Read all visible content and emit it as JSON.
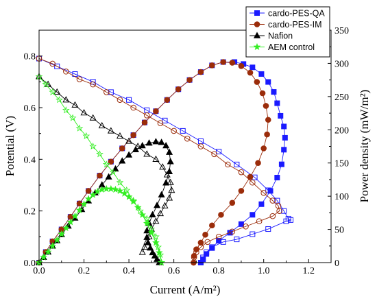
{
  "chart_data": {
    "type": "line",
    "xlabel": "Current (A/m²)",
    "ylabel_left": "Potential (V)",
    "ylabel_right": "Power density (mW/m²)",
    "xlim": [
      0,
      1.3
    ],
    "ylim_left": [
      0,
      0.9
    ],
    "ylim_right": [
      0,
      350
    ],
    "x_ticks": [
      "0.0",
      "0.2",
      "0.4",
      "0.6",
      "0.8",
      "1.0",
      "1.2"
    ],
    "y_ticks_left": [
      "0.0",
      "0.2",
      "0.4",
      "0.6",
      "0.8"
    ],
    "y_ticks_right": [
      "0",
      "50",
      "100",
      "150",
      "200",
      "250",
      "300",
      "350"
    ],
    "legend_position": "top-right",
    "grid": false,
    "series": [
      {
        "name": "cardo-PES-QA",
        "color": "#1a1aff",
        "marker": "square",
        "polarization": [
          [
            0.0,
            0.79
          ],
          [
            0.08,
            0.76
          ],
          [
            0.16,
            0.73
          ],
          [
            0.24,
            0.7
          ],
          [
            0.32,
            0.66
          ],
          [
            0.4,
            0.63
          ],
          [
            0.48,
            0.59
          ],
          [
            0.56,
            0.55
          ],
          [
            0.64,
            0.51
          ],
          [
            0.72,
            0.47
          ],
          [
            0.8,
            0.43
          ],
          [
            0.88,
            0.38
          ],
          [
            0.96,
            0.33
          ],
          [
            1.02,
            0.28
          ],
          [
            1.06,
            0.24
          ],
          [
            1.09,
            0.2
          ],
          [
            1.11,
            0.17
          ],
          [
            1.12,
            0.165
          ],
          [
            1.1,
            0.16
          ],
          [
            1.02,
            0.13
          ],
          [
            0.95,
            0.11
          ],
          [
            0.88,
            0.09
          ],
          [
            0.82,
            0.08
          ],
          [
            0.77,
            0.06
          ],
          [
            0.745,
            0.04
          ],
          [
            0.73,
            0.02
          ],
          [
            0.72,
            0.0
          ]
        ],
        "power": [
          [
            0.0,
            0
          ],
          [
            0.03,
            16
          ],
          [
            0.06,
            32
          ],
          [
            0.1,
            50
          ],
          [
            0.14,
            69
          ],
          [
            0.18,
            89
          ],
          [
            0.22,
            108
          ],
          [
            0.27,
            131
          ],
          [
            0.32,
            152
          ],
          [
            0.37,
            172
          ],
          [
            0.42,
            192
          ],
          [
            0.47,
            211
          ],
          [
            0.52,
            228
          ],
          [
            0.57,
            245
          ],
          [
            0.62,
            261
          ],
          [
            0.67,
            275
          ],
          [
            0.72,
            287
          ],
          [
            0.77,
            297
          ],
          [
            0.82,
            302
          ],
          [
            0.87,
            302
          ],
          [
            0.91,
            299
          ],
          [
            0.95,
            294
          ],
          [
            0.99,
            284
          ],
          [
            1.02,
            272
          ],
          [
            1.045,
            257
          ],
          [
            1.06,
            240
          ],
          [
            1.075,
            221
          ],
          [
            1.09,
            205
          ],
          [
            1.095,
            188
          ],
          [
            1.09,
            170
          ],
          [
            1.08,
            148
          ],
          [
            1.06,
            128
          ],
          [
            1.03,
            108
          ],
          [
            0.99,
            88
          ],
          [
            0.95,
            72
          ],
          [
            0.9,
            58
          ],
          [
            0.85,
            45
          ],
          [
            0.8,
            33
          ],
          [
            0.77,
            22
          ],
          [
            0.745,
            13
          ],
          [
            0.73,
            5
          ],
          [
            0.72,
            0
          ]
        ]
      },
      {
        "name": "cardo-PES-IM",
        "color": "#9b2c0a",
        "marker": "circle",
        "polarization": [
          [
            0.0,
            0.79
          ],
          [
            0.06,
            0.77
          ],
          [
            0.12,
            0.74
          ],
          [
            0.18,
            0.71
          ],
          [
            0.24,
            0.69
          ],
          [
            0.3,
            0.66
          ],
          [
            0.36,
            0.63
          ],
          [
            0.42,
            0.6
          ],
          [
            0.48,
            0.57
          ],
          [
            0.54,
            0.54
          ],
          [
            0.6,
            0.51
          ],
          [
            0.66,
            0.48
          ],
          [
            0.72,
            0.45
          ],
          [
            0.78,
            0.42
          ],
          [
            0.84,
            0.38
          ],
          [
            0.9,
            0.35
          ],
          [
            0.95,
            0.31
          ],
          [
            1.0,
            0.27
          ],
          [
            1.04,
            0.24
          ],
          [
            1.065,
            0.22
          ],
          [
            1.07,
            0.2
          ],
          [
            1.04,
            0.18
          ],
          [
            0.98,
            0.16
          ],
          [
            0.92,
            0.14
          ],
          [
            0.86,
            0.12
          ],
          [
            0.8,
            0.1
          ],
          [
            0.75,
            0.08
          ],
          [
            0.72,
            0.06
          ],
          [
            0.7,
            0.04
          ],
          [
            0.69,
            0.02
          ],
          [
            0.688,
            0.0
          ]
        ],
        "power": [
          [
            0.0,
            0
          ],
          [
            0.03,
            16
          ],
          [
            0.06,
            32
          ],
          [
            0.1,
            50
          ],
          [
            0.14,
            69
          ],
          [
            0.18,
            89
          ],
          [
            0.22,
            108
          ],
          [
            0.27,
            131
          ],
          [
            0.32,
            152
          ],
          [
            0.37,
            172
          ],
          [
            0.42,
            192
          ],
          [
            0.47,
            211
          ],
          [
            0.52,
            228
          ],
          [
            0.57,
            245
          ],
          [
            0.62,
            261
          ],
          [
            0.67,
            275
          ],
          [
            0.72,
            287
          ],
          [
            0.77,
            297
          ],
          [
            0.82,
            302
          ],
          [
            0.86,
            301
          ],
          [
            0.9,
            296
          ],
          [
            0.94,
            286
          ],
          [
            0.97,
            272
          ],
          [
            0.995,
            255
          ],
          [
            1.01,
            236
          ],
          [
            1.02,
            215
          ],
          [
            1.015,
            193
          ],
          [
            1.0,
            172
          ],
          [
            0.975,
            150
          ],
          [
            0.94,
            129
          ],
          [
            0.9,
            108
          ],
          [
            0.86,
            90
          ],
          [
            0.81,
            72
          ],
          [
            0.77,
            56
          ],
          [
            0.74,
            42
          ],
          [
            0.72,
            30
          ],
          [
            0.7,
            20
          ],
          [
            0.69,
            10
          ],
          [
            0.688,
            0
          ]
        ]
      },
      {
        "name": "Nafion",
        "color": "#000000",
        "marker": "triangle",
        "polarization": [
          [
            0.0,
            0.72
          ],
          [
            0.04,
            0.69
          ],
          [
            0.08,
            0.66
          ],
          [
            0.12,
            0.63
          ],
          [
            0.16,
            0.61
          ],
          [
            0.2,
            0.58
          ],
          [
            0.24,
            0.56
          ],
          [
            0.28,
            0.53
          ],
          [
            0.32,
            0.51
          ],
          [
            0.36,
            0.49
          ],
          [
            0.4,
            0.47
          ],
          [
            0.44,
            0.45
          ],
          [
            0.48,
            0.42
          ],
          [
            0.52,
            0.4
          ],
          [
            0.55,
            0.37
          ],
          [
            0.57,
            0.34
          ],
          [
            0.585,
            0.31
          ],
          [
            0.59,
            0.28
          ],
          [
            0.58,
            0.25
          ],
          [
            0.56,
            0.22
          ],
          [
            0.54,
            0.19
          ],
          [
            0.52,
            0.16
          ],
          [
            0.5,
            0.13
          ],
          [
            0.49,
            0.1
          ],
          [
            0.48,
            0.08
          ],
          [
            0.47,
            0.06
          ],
          [
            0.46,
            0.04
          ]
        ],
        "power": [
          [
            0.0,
            0
          ],
          [
            0.02,
            8
          ],
          [
            0.04,
            16
          ],
          [
            0.06,
            25
          ],
          [
            0.08,
            33
          ],
          [
            0.1,
            42
          ],
          [
            0.13,
            55
          ],
          [
            0.16,
            67
          ],
          [
            0.19,
            80
          ],
          [
            0.22,
            93
          ],
          [
            0.25,
            105
          ],
          [
            0.28,
            117
          ],
          [
            0.31,
            129
          ],
          [
            0.34,
            141
          ],
          [
            0.37,
            153
          ],
          [
            0.4,
            162
          ],
          [
            0.43,
            170
          ],
          [
            0.46,
            176
          ],
          [
            0.49,
            180
          ],
          [
            0.52,
            182
          ],
          [
            0.545,
            181
          ],
          [
            0.565,
            176
          ],
          [
            0.58,
            166
          ],
          [
            0.585,
            152
          ],
          [
            0.58,
            137
          ],
          [
            0.565,
            120
          ],
          [
            0.545,
            102
          ],
          [
            0.525,
            86
          ],
          [
            0.505,
            72
          ],
          [
            0.49,
            59
          ],
          [
            0.48,
            48
          ],
          [
            0.48,
            38
          ],
          [
            0.485,
            30
          ],
          [
            0.495,
            22
          ],
          [
            0.505,
            15
          ],
          [
            0.515,
            10
          ],
          [
            0.525,
            5
          ],
          [
            0.535,
            0
          ]
        ]
      },
      {
        "name": "AEM control",
        "color": "#33ee22",
        "marker": "star",
        "polarization": [
          [
            0.0,
            0.72
          ],
          [
            0.03,
            0.69
          ],
          [
            0.06,
            0.66
          ],
          [
            0.09,
            0.63
          ],
          [
            0.12,
            0.59
          ],
          [
            0.15,
            0.56
          ],
          [
            0.18,
            0.52
          ],
          [
            0.21,
            0.49
          ],
          [
            0.24,
            0.45
          ],
          [
            0.27,
            0.42
          ],
          [
            0.3,
            0.38
          ],
          [
            0.33,
            0.35
          ],
          [
            0.36,
            0.31
          ],
          [
            0.39,
            0.28
          ],
          [
            0.42,
            0.24
          ],
          [
            0.45,
            0.2
          ],
          [
            0.48,
            0.17
          ],
          [
            0.5,
            0.13
          ],
          [
            0.52,
            0.1
          ],
          [
            0.53,
            0.06
          ],
          [
            0.54,
            0.03
          ],
          [
            0.545,
            0.0
          ]
        ],
        "power": [
          [
            0.0,
            0
          ],
          [
            0.02,
            8
          ],
          [
            0.04,
            16
          ],
          [
            0.06,
            25
          ],
          [
            0.08,
            34
          ],
          [
            0.1,
            43
          ],
          [
            0.12,
            52
          ],
          [
            0.14,
            61
          ],
          [
            0.16,
            70
          ],
          [
            0.18,
            79
          ],
          [
            0.2,
            88
          ],
          [
            0.22,
            96
          ],
          [
            0.24,
            102
          ],
          [
            0.26,
            107
          ],
          [
            0.28,
            110
          ],
          [
            0.3,
            111
          ],
          [
            0.32,
            111
          ],
          [
            0.34,
            110
          ],
          [
            0.36,
            108
          ],
          [
            0.38,
            104
          ],
          [
            0.4,
            99
          ],
          [
            0.42,
            92
          ],
          [
            0.44,
            83
          ],
          [
            0.46,
            72
          ],
          [
            0.48,
            59
          ],
          [
            0.5,
            45
          ],
          [
            0.52,
            30
          ],
          [
            0.535,
            15
          ],
          [
            0.545,
            0
          ]
        ]
      }
    ]
  }
}
